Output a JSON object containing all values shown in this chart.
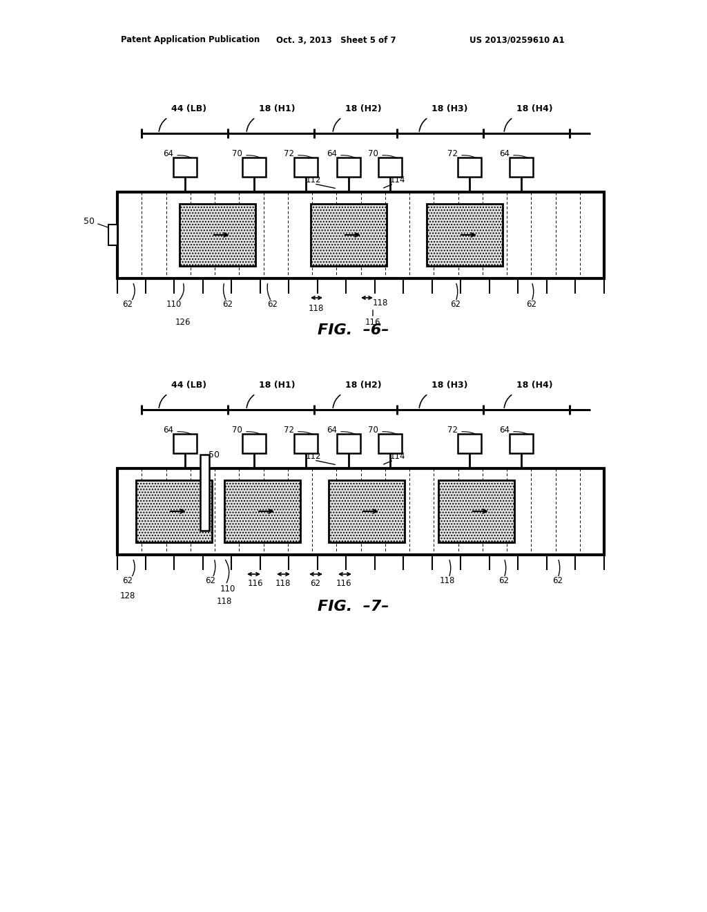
{
  "header_left": "Patent Application Publication",
  "header_mid": "Oct. 3, 2013   Sheet 5 of 7",
  "header_right": "US 2013/0259610 A1",
  "bg_color": "#ffffff",
  "fg_color": "#000000"
}
